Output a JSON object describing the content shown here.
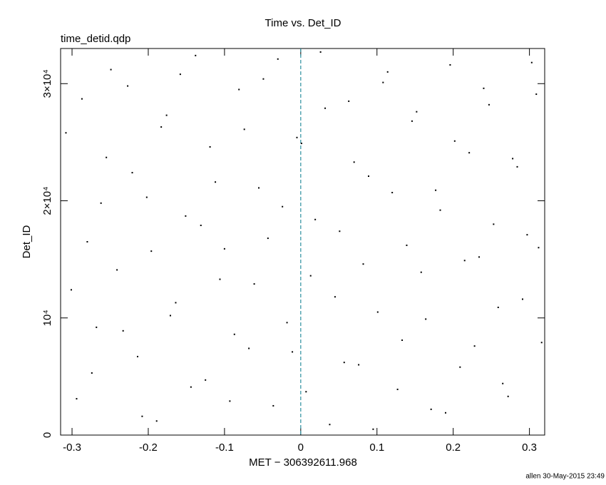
{
  "chart_data": {
    "type": "scatter",
    "title": "Time vs. Det_ID",
    "subtitle": "time_detid.qdp",
    "x_label": "MET − 306392611.968",
    "y_label": "Det_ID",
    "footer": "allen 30-May-2015 23:49",
    "color": "#000000",
    "marker_line_color": "#2a8f9f",
    "xlim": [
      -0.315,
      0.32
    ],
    "ylim": [
      0,
      33000
    ],
    "xticks": [
      -0.3,
      -0.2,
      -0.1,
      0,
      0.1,
      0.2,
      0.3
    ],
    "yticks": [
      0,
      {
        "value": 10000,
        "label": "10⁴"
      },
      {
        "value": 20000,
        "label": "2×10⁴"
      },
      {
        "value": 30000,
        "label": "3×10⁴"
      }
    ],
    "marker_line_x": 0,
    "x": [
      -0.301,
      -0.287,
      -0.274,
      -0.262,
      -0.249,
      -0.233,
      -0.221,
      -0.208,
      -0.196,
      -0.183,
      -0.171,
      -0.158,
      -0.144,
      -0.131,
      -0.119,
      -0.106,
      -0.093,
      -0.081,
      -0.068,
      -0.055,
      -0.043,
      -0.03,
      -0.018,
      -0.005,
      0.007,
      0.019,
      0.032,
      0.045,
      0.057,
      0.07,
      0.082,
      0.095,
      0.108,
      0.12,
      0.133,
      0.146,
      0.158,
      0.171,
      0.183,
      0.196,
      0.209,
      0.221,
      0.234,
      0.247,
      0.259,
      0.272,
      0.284,
      0.297,
      0.309,
      0.316,
      -0.308,
      -0.294,
      -0.28,
      -0.268,
      -0.255,
      -0.241,
      -0.227,
      -0.214,
      -0.202,
      -0.189,
      -0.176,
      -0.164,
      -0.151,
      -0.138,
      -0.125,
      -0.112,
      -0.1,
      -0.087,
      -0.074,
      -0.061,
      -0.049,
      -0.036,
      -0.024,
      -0.011,
      0.001,
      0.013,
      0.026,
      0.038,
      0.051,
      0.063,
      0.076,
      0.089,
      0.101,
      0.114,
      0.127,
      0.139,
      0.152,
      0.164,
      0.177,
      0.19,
      0.202,
      0.215,
      0.228,
      0.24,
      0.253,
      0.265,
      0.278,
      0.291,
      0.303,
      0.312
    ],
    "values": [
      12400,
      28700,
      5300,
      19800,
      31200,
      8900,
      22400,
      1600,
      15700,
      26300,
      10200,
      30800,
      4100,
      17900,
      24600,
      13300,
      2900,
      29500,
      7400,
      21100,
      16800,
      32100,
      9600,
      25400,
      3700,
      18400,
      27900,
      11800,
      6200,
      23300,
      14600,
      500,
      30100,
      20700,
      8100,
      26800,
      13900,
      2200,
      19200,
      31600,
      5800,
      24100,
      15200,
      28200,
      10900,
      3300,
      22900,
      17100,
      29100,
      7900,
      25800,
      3100,
      16500,
      9200,
      23700,
      14100,
      29800,
      6700,
      20300,
      1200,
      27300,
      11300,
      18700,
      32400,
      4700,
      21600,
      15900,
      8600,
      26100,
      12900,
      30400,
      2500,
      19500,
      7100,
      24900,
      13600,
      32700,
      900,
      17400,
      28500,
      6000,
      22100,
      10500,
      31000,
      3900,
      16200,
      27600,
      9900,
      20900,
      1900,
      25100,
      14900,
      7600,
      29600,
      18000,
      4400,
      23600,
      11600,
      31800,
      16000
    ]
  }
}
